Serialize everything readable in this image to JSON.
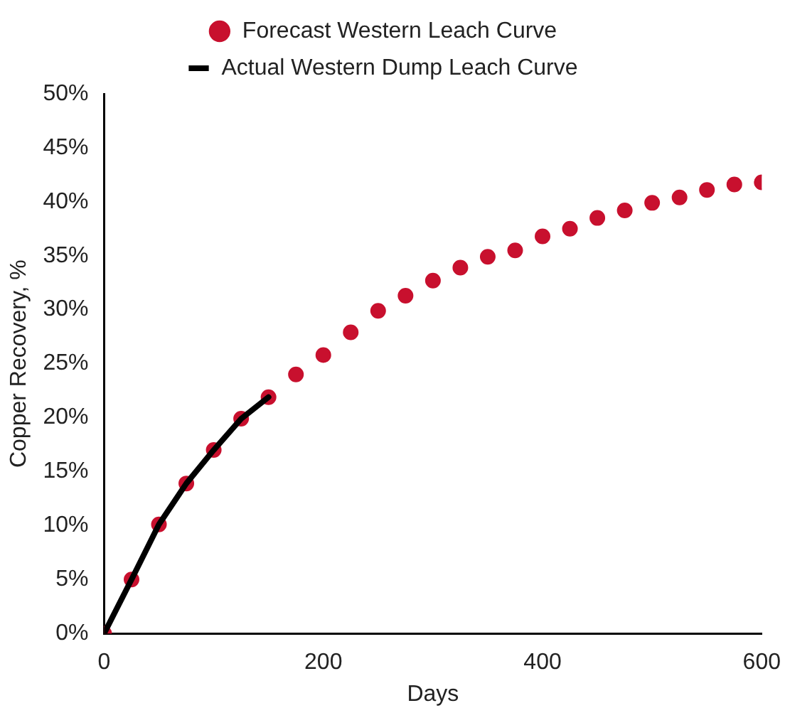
{
  "chart_data": {
    "type": "scatter",
    "xlabel": "Days",
    "ylabel": "Copper Recovery, %",
    "series": [
      {
        "name": "Forecast Western Leach Curve",
        "color": "#c8102e",
        "marker": "circle",
        "x": [
          0,
          25,
          50,
          75,
          100,
          125,
          150,
          175,
          200,
          225,
          250,
          275,
          300,
          325,
          350,
          375,
          400,
          425,
          450,
          475,
          500,
          525,
          550,
          575,
          600
        ],
        "values": [
          0,
          5.0,
          10.1,
          13.9,
          17.0,
          19.9,
          21.9,
          24.0,
          25.8,
          27.9,
          29.9,
          31.3,
          32.7,
          33.9,
          34.9,
          35.5,
          36.8,
          37.5,
          38.5,
          39.2,
          39.9,
          40.4,
          41.1,
          41.6,
          41.8
        ]
      },
      {
        "name": "Actual Western Dump Leach Curve",
        "type": "line",
        "color": "#000000",
        "marker": "none",
        "line_style": "solid",
        "x": [
          0,
          25,
          50,
          75,
          100,
          125,
          150
        ],
        "values": [
          0,
          5.0,
          10.1,
          13.9,
          17.0,
          19.9,
          21.9
        ]
      }
    ],
    "xlim": [
      0,
      600
    ],
    "xticks": [
      0,
      200,
      400,
      600
    ],
    "ylim": [
      0,
      50
    ],
    "yticks": [
      {
        "value": 0,
        "label": "0%"
      },
      {
        "value": 5,
        "label": "5%"
      },
      {
        "value": 10,
        "label": "10%"
      },
      {
        "value": 15,
        "label": "15%"
      },
      {
        "value": 20,
        "label": "20%"
      },
      {
        "value": 25,
        "label": "25%"
      },
      {
        "value": 30,
        "label": "30%"
      },
      {
        "value": 35,
        "label": "35%"
      },
      {
        "value": 40,
        "label": "40%"
      },
      {
        "value": 45,
        "label": "45%"
      },
      {
        "value": 50,
        "label": "50%"
      }
    ],
    "grid": false,
    "legend": "top"
  }
}
